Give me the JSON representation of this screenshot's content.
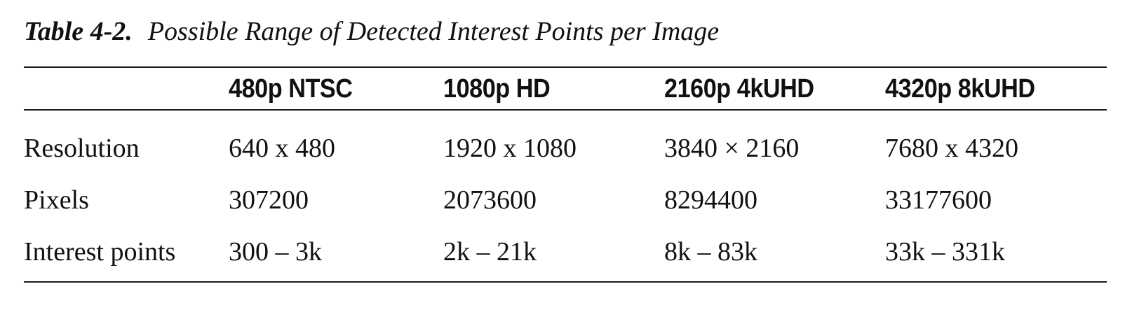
{
  "caption": {
    "label": "Table 4-2.",
    "title": "Possible Range of Detected Interest Points per Image"
  },
  "table": {
    "columns": [
      "",
      "480p NTSC",
      "1080p HD",
      "2160p 4kUHD",
      "4320p 8kUHD"
    ],
    "rows": [
      [
        "Resolution",
        "640 x 480",
        "1920 x 1080",
        "3840 × 2160",
        "7680 x 4320"
      ],
      [
        "Pixels",
        "307200",
        "2073600",
        "8294400",
        "33177600"
      ],
      [
        "Interest points",
        "300 – 3k",
        "2k – 21k",
        "8k – 83k",
        "33k – 331k"
      ]
    ]
  }
}
